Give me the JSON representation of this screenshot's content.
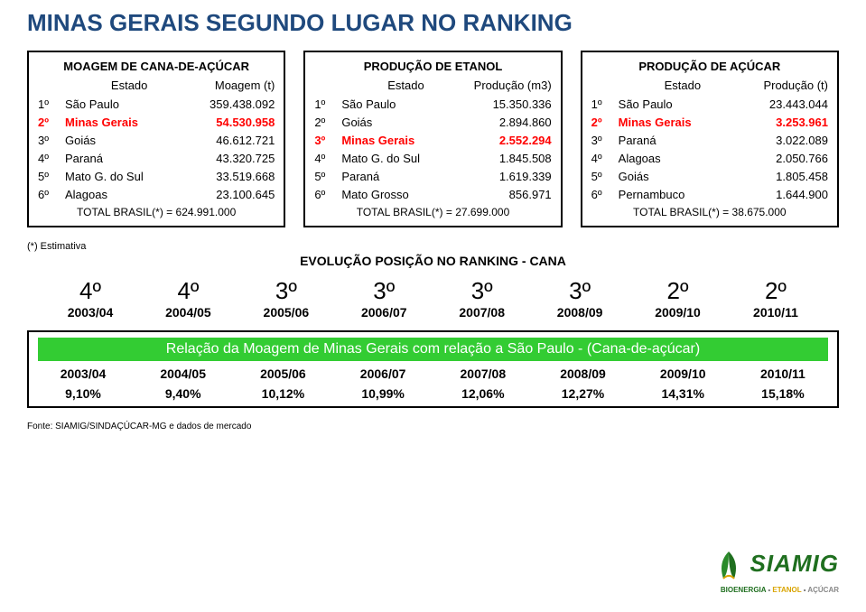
{
  "title": "MINAS GERAIS SEGUNDO LUGAR NO RANKING",
  "tables": [
    {
      "title": "MOAGEM DE CANA-DE-AÇÚCAR",
      "col_estado": "Estado",
      "col_val": "Moagem (t)",
      "rows": [
        {
          "r": "1º",
          "e": "São Paulo",
          "v": "359.438.092",
          "hl": false
        },
        {
          "r": "2º",
          "e": "Minas Gerais",
          "v": "54.530.958",
          "hl": true
        },
        {
          "r": "3º",
          "e": "Goiás",
          "v": "46.612.721",
          "hl": false
        },
        {
          "r": "4º",
          "e": "Paraná",
          "v": "43.320.725",
          "hl": false
        },
        {
          "r": "5º",
          "e": "Mato G. do Sul",
          "v": "33.519.668",
          "hl": false
        },
        {
          "r": "6º",
          "e": "Alagoas",
          "v": "23.100.645",
          "hl": false
        }
      ],
      "total": "TOTAL BRASIL(*)  = 624.991.000"
    },
    {
      "title": "PRODUÇÃO DE ETANOL",
      "col_estado": "Estado",
      "col_val": "Produção (m3)",
      "rows": [
        {
          "r": "1º",
          "e": "São Paulo",
          "v": "15.350.336",
          "hl": false
        },
        {
          "r": "2º",
          "e": "Goiás",
          "v": "2.894.860",
          "hl": false
        },
        {
          "r": "3º",
          "e": "Minas Gerais",
          "v": "2.552.294",
          "hl": true
        },
        {
          "r": "4º",
          "e": "Mato G. do Sul",
          "v": "1.845.508",
          "hl": false
        },
        {
          "r": "5º",
          "e": "Paraná",
          "v": "1.619.339",
          "hl": false
        },
        {
          "r": "6º",
          "e": "Mato Grosso",
          "v": "856.971",
          "hl": false
        }
      ],
      "total": "TOTAL BRASIL(*) = 27.699.000"
    },
    {
      "title": "PRODUÇÃO DE AÇÚCAR",
      "col_estado": "Estado",
      "col_val": "Produção (t)",
      "rows": [
        {
          "r": "1º",
          "e": "São Paulo",
          "v": "23.443.044",
          "hl": false
        },
        {
          "r": "2º",
          "e": "Minas Gerais",
          "v": "3.253.961",
          "hl": true
        },
        {
          "r": "3º",
          "e": "Paraná",
          "v": "3.022.089",
          "hl": false
        },
        {
          "r": "4º",
          "e": "Alagoas",
          "v": "2.050.766",
          "hl": false
        },
        {
          "r": "5º",
          "e": "Goiás",
          "v": "1.805.458",
          "hl": false
        },
        {
          "r": "6º",
          "e": "Pernambuco",
          "v": "1.644.900",
          "hl": false
        }
      ],
      "total": "TOTAL BRASIL(*)  = 38.675.000"
    }
  ],
  "estimativa": "(*) Estimativa",
  "evo_title": "EVOLUÇÃO POSIÇÃO NO RANKING - CANA",
  "evo_positions": [
    "4º",
    "4º",
    "3º",
    "3º",
    "3º",
    "3º",
    "2º",
    "2º"
  ],
  "evo_years": [
    "2003/04",
    "2004/05",
    "2005/06",
    "2006/07",
    "2007/08",
    "2008/09",
    "2009/10",
    "2010/11"
  ],
  "rel_title": "Relação da Moagem de Minas Gerais com relação a São Paulo - (Cana-de-açúcar)",
  "rel_years": [
    "2003/04",
    "2004/05",
    "2005/06",
    "2006/07",
    "2007/08",
    "2008/09",
    "2009/10",
    "2010/11"
  ],
  "rel_vals": [
    "9,10%",
    "9,40%",
    "10,12%",
    "10,99%",
    "12,06%",
    "12,27%",
    "14,31%",
    "15,18%"
  ],
  "source": "Fonte: SIAMIG/SINDAÇÚCAR-MG  e dados de mercado",
  "logo": {
    "main": "SIAMIG",
    "sub_be": "BIOENERGIA",
    "sub_et": "ETANOL",
    "sub_ac": "AÇÚCAR",
    "sep": " - "
  },
  "colors": {
    "title": "#1f497d",
    "highlight": "#ff0000",
    "relbg": "#33cc33",
    "logo_green": "#1f6f1f",
    "logo_yellow": "#d9a400",
    "logo_gray": "#888888"
  }
}
